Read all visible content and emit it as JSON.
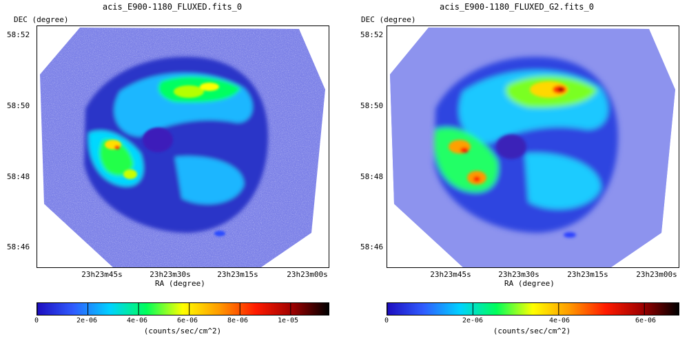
{
  "chart_data": [
    {
      "type": "heatmap",
      "title": "acis_E900-1180_FLUXED.fits_0",
      "xlabel": "RA (degree)",
      "ylabel": "DEC (degree)",
      "x_ticks": [
        "23h23m45s",
        "23h23m30s",
        "23h23m15s",
        "23h23m00s"
      ],
      "y_ticks": [
        "58:52",
        "58:50",
        "58:48",
        "58:46"
      ],
      "colorbar": {
        "label": "(counts/sec/cm^2)",
        "min": 0,
        "max": 1.15e-05,
        "ticks": [
          "0",
          "2e-06",
          "4e-06",
          "6e-06",
          "8e-06",
          "1e-05"
        ]
      },
      "colormap": [
        "#1d0dbf",
        "#2f5cff",
        "#00d2ff",
        "#00ff5a",
        "#ffff00",
        "#ff9a00",
        "#ff1a00",
        "#9e0000",
        "#000000"
      ],
      "smoothed": false
    },
    {
      "type": "heatmap",
      "title": "acis_E900-1180_FLUXED_G2.fits_0",
      "xlabel": "RA (degree)",
      "ylabel": "DEC (degree)",
      "x_ticks": [
        "23h23m45s",
        "23h23m30s",
        "23h23m15s",
        "23h23m00s"
      ],
      "y_ticks": [
        "58:52",
        "58:50",
        "58:48",
        "58:46"
      ],
      "colorbar": {
        "label": "(counts/sec/cm^2)",
        "min": 0,
        "max": 6.8e-06,
        "ticks": [
          "0",
          "2e-06",
          "4e-06",
          "6e-06"
        ]
      },
      "colormap": [
        "#1d0dbf",
        "#2f5cff",
        "#00d2ff",
        "#00ff5a",
        "#ffff00",
        "#ff9a00",
        "#ff1a00",
        "#9e0000",
        "#000000"
      ],
      "smoothed": true
    }
  ]
}
